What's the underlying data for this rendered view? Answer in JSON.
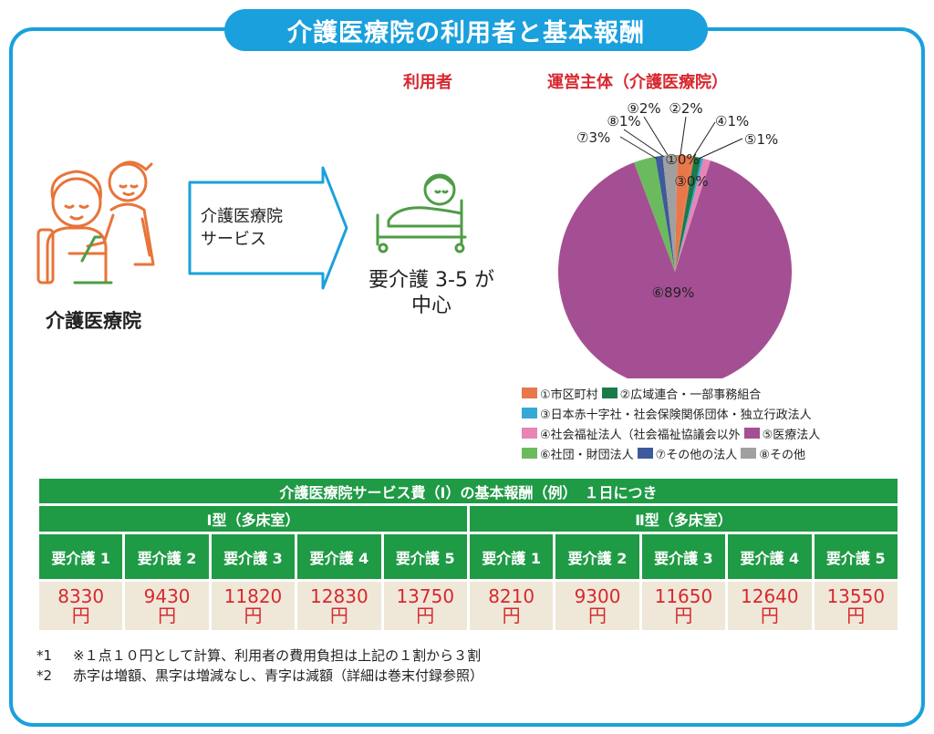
{
  "title": "介護医療院の利用者と基本報酬",
  "facility_label": "介護医療院",
  "service_label_line1": "介護医療院",
  "service_label_line2": "サービス",
  "user_heading": "利用者",
  "user_caption_line1": "要介護 3-5 が",
  "user_caption_line2": "中心",
  "colors": {
    "accent_blue": "#1aa0dc",
    "table_green": "#1f9a45",
    "value_red": "#d7282f",
    "illustration_orange": "#e8743a",
    "illustration_green": "#4e9c45"
  },
  "chart_data": {
    "type": "pie",
    "title": "運営主体（介護医療院）",
    "slices": [
      {
        "name": "①市区町村",
        "label": "②2%",
        "value": 2,
        "color": "#e8774a"
      },
      {
        "name": "②広域連合・一部事務組合",
        "label": "④1%",
        "value": 1,
        "color": "#1a7a4a"
      },
      {
        "name": "③日本赤十字社・社会保険関係団体・独立行政法人",
        "label": "③0%",
        "value": 0.3,
        "color": "#35a9d6"
      },
      {
        "name": "④社会福祉法人（社会福祉協議会以外）",
        "label": "⑤1%",
        "value": 1,
        "color": "#e885b4"
      },
      {
        "name": "⑤医療法人",
        "label": "⑥89%",
        "value": 89,
        "color": "#a44f93"
      },
      {
        "name": "⑥社団・財団法人",
        "label": "⑦3%",
        "value": 3,
        "color": "#6cba5e"
      },
      {
        "name": "⑦その他の法人",
        "label": "⑧1%",
        "value": 1,
        "color": "#3e5a9c"
      },
      {
        "name": "⑧その他",
        "label": "⑨2%",
        "value": 2,
        "color": "#a0a0a0"
      },
      {
        "name": "",
        "label": "①0%",
        "value": 0.3,
        "color": "#e8774a"
      }
    ],
    "legend": {
      "position": "bottom",
      "rows": [
        [
          {
            "text": "①市区町村",
            "color": "#e8774a"
          },
          {
            "text": "②広域連合・一部事務組合",
            "color": "#1a7a4a"
          }
        ],
        [
          {
            "text": "③日本赤十字社・社会保険関係団体・独立行政法人",
            "color": "#35a9d6"
          }
        ],
        [
          {
            "text": "④社会福祉法人（社会福祉協議会以外",
            "color": "#e885b4"
          },
          {
            "text": "⑤医療法人",
            "color": "#a44f93"
          }
        ],
        [
          {
            "text": "⑥社団・財団法人",
            "color": "#6cba5e"
          },
          {
            "text": "⑦その他の法人",
            "color": "#3e5a9c"
          },
          {
            "text": "⑧その他",
            "color": "#a0a0a0"
          }
        ]
      ]
    }
  },
  "fee_table": {
    "title": "介護医療院サービス費（Ⅰ）の基本報酬（例）　１日につき",
    "groups": [
      {
        "name": "Ⅰ型（多床室）",
        "headers": [
          "要介護 1",
          "要介護 2",
          "要介護 3",
          "要介護 4",
          "要介護 5"
        ],
        "values": [
          "8330",
          "9430",
          "11820",
          "12830",
          "13750"
        ]
      },
      {
        "name": "Ⅱ型（多床室）",
        "headers": [
          "要介護 1",
          "要介護 2",
          "要介護 3",
          "要介護 4",
          "要介護 5"
        ],
        "values": [
          "8210",
          "9300",
          "11650",
          "12640",
          "13550"
        ]
      }
    ],
    "unit": "円"
  },
  "notes": [
    {
      "label": "*1",
      "text": "※１点１０円として計算、利用者の費用負担は上記の１割から３割"
    },
    {
      "label": "*2",
      "text": "赤字は増額、黒字は増減なし、青字は減額（詳細は巻末付録参照）"
    }
  ]
}
